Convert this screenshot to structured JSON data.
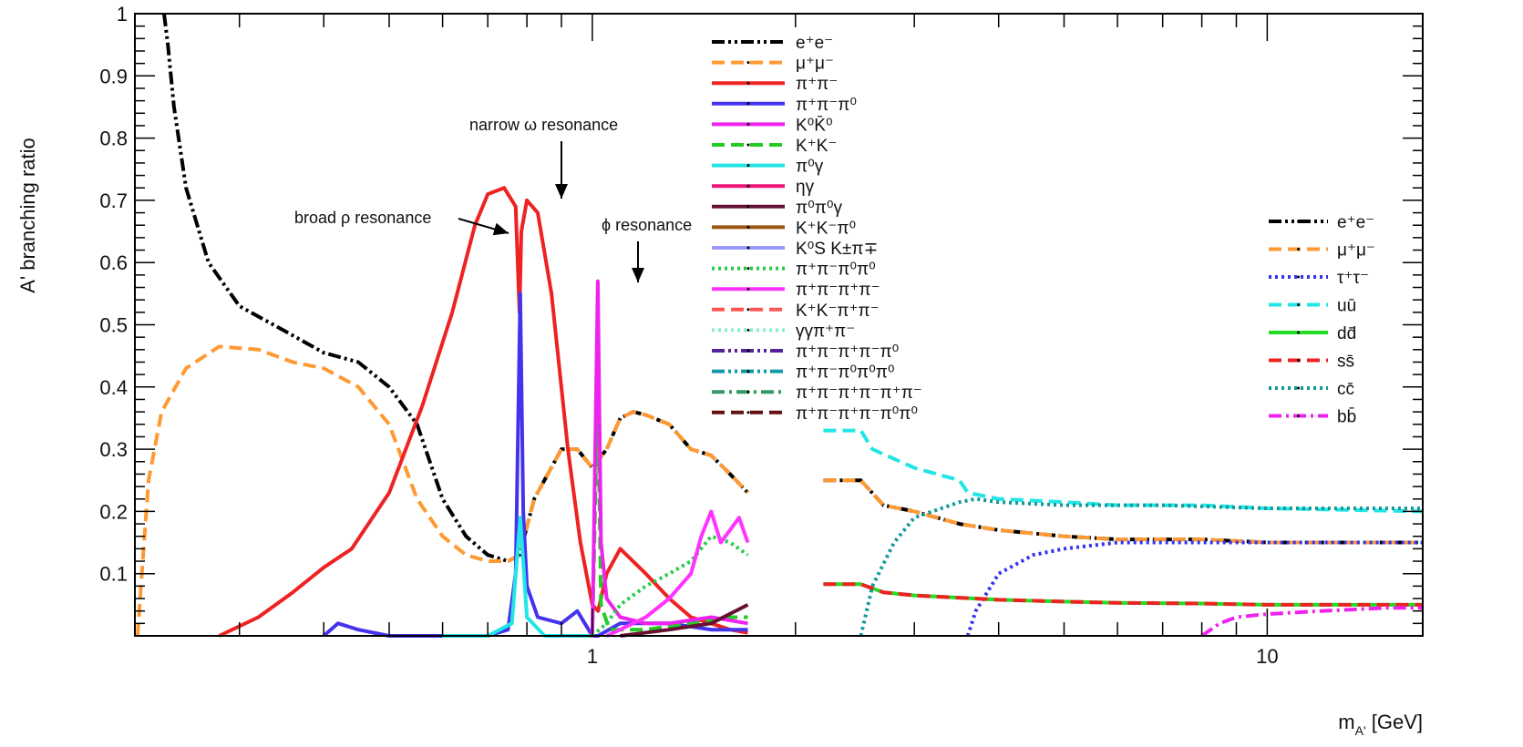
{
  "chart_data": {
    "type": "line",
    "xlabel": "m_A' [GeV]",
    "xlabel_main": "m",
    "xlabel_sub": "A'",
    "xlabel_unit": "[GeV]",
    "ylabel": "A' branching ratio",
    "xscale": "log",
    "xlim": [
      0.21,
      17
    ],
    "ylim": [
      0,
      1
    ],
    "yticks": [
      {
        "value": 0.1,
        "label": "0.1"
      },
      {
        "value": 0.2,
        "label": "0.2"
      },
      {
        "value": 0.3,
        "label": "0.3"
      },
      {
        "value": 0.4,
        "label": "0.4"
      },
      {
        "value": 0.5,
        "label": "0.5"
      },
      {
        "value": 0.6,
        "label": "0.6"
      },
      {
        "value": 0.7,
        "label": "0.7"
      },
      {
        "value": 0.8,
        "label": "0.8"
      },
      {
        "value": 0.9,
        "label": "0.9"
      },
      {
        "value": 1.0,
        "label": "1"
      }
    ],
    "xticks": [
      {
        "value": 1,
        "label": "1"
      },
      {
        "value": 10,
        "label": "10"
      }
    ],
    "annotations": [
      {
        "text": "narrow ω resonance",
        "x": 0.78,
        "y": 0.7
      },
      {
        "text": "broad ρ resonance",
        "x": 0.68,
        "y": 0.65
      },
      {
        "text": "ϕ resonance",
        "x": 1.02,
        "y": 0.57
      }
    ],
    "legends": [
      {
        "placement": "top-center",
        "entries": [
          {
            "id": "l1",
            "label": "e⁺e⁻",
            "color": "#000000",
            "dash": "dashdotdot"
          },
          {
            "id": "l2",
            "label": "μ⁺μ⁻",
            "color": "#ff9933",
            "dash": "dash"
          },
          {
            "id": "l3",
            "label": "π⁺π⁻",
            "color": "#ee2222",
            "dash": "solid"
          },
          {
            "id": "l4",
            "label": "π⁺π⁻π⁰",
            "color": "#4433ee",
            "dash": "solid"
          },
          {
            "id": "l5",
            "label": "K⁰K̄⁰",
            "color": "#ee22ee",
            "dash": "solid"
          },
          {
            "id": "l6",
            "label": "K⁺K⁻",
            "color": "#22cc22",
            "dash": "dash"
          },
          {
            "id": "l7",
            "label": "π⁰γ",
            "color": "#22e5e5",
            "dash": "solid"
          },
          {
            "id": "l8",
            "label": "ηγ",
            "color": "#ee1177",
            "dash": "solid"
          },
          {
            "id": "l9",
            "label": "π⁰π⁰γ",
            "color": "#661133",
            "dash": "solid"
          },
          {
            "id": "l10",
            "label": "K⁺K⁻π⁰",
            "color": "#995511",
            "dash": "solid"
          },
          {
            "id": "l11",
            "label": "K⁰S K±π∓",
            "color": "#9999ff",
            "dash": "solid"
          },
          {
            "id": "l12",
            "label": "π⁺π⁻π⁰π⁰",
            "color": "#22cc44",
            "dash": "dot"
          },
          {
            "id": "l13",
            "label": "π⁺π⁻π⁺π⁻",
            "color": "#ff33ff",
            "dash": "solid"
          },
          {
            "id": "l14",
            "label": "K⁺K⁻π⁺π⁻",
            "color": "#ff5555",
            "dash": "dash"
          },
          {
            "id": "l15",
            "label": "γγπ⁺π⁻",
            "color": "#88eecc",
            "dash": "dot"
          },
          {
            "id": "l16",
            "label": "π⁺π⁻π⁺π⁻π⁰",
            "color": "#552299",
            "dash": "dashdotdot"
          },
          {
            "id": "l17",
            "label": "π⁺π⁻π⁰π⁰π⁰",
            "color": "#1199aa",
            "dash": "dashdotdot"
          },
          {
            "id": "l18",
            "label": "π⁺π⁻π⁺π⁻π⁺π⁻",
            "color": "#339966",
            "dash": "dashdot"
          },
          {
            "id": "l19",
            "label": "π⁺π⁻π⁺π⁻π⁰π⁰",
            "color": "#661111",
            "dash": "dash"
          }
        ]
      },
      {
        "placement": "right",
        "entries": [
          {
            "id": "r1",
            "label": "e⁺e⁻",
            "color": "#000000",
            "dash": "dashdotdot"
          },
          {
            "id": "r2",
            "label": "μ⁺μ⁻",
            "color": "#ff9933",
            "dash": "dash"
          },
          {
            "id": "r3",
            "label": "τ⁺τ⁻",
            "color": "#3333ee",
            "dash": "dot"
          },
          {
            "id": "r4",
            "label": "uū",
            "color": "#22e5e5",
            "dash": "dash"
          },
          {
            "id": "r5",
            "label": "dd̄",
            "color": "#22dd22",
            "dash": "solid"
          },
          {
            "id": "r6",
            "label": "ss̄",
            "color": "#ee2222",
            "dash": "dash"
          },
          {
            "id": "r7",
            "label": "cc̄",
            "color": "#119999",
            "dash": "dot"
          },
          {
            "id": "r8",
            "label": "bb̄",
            "color": "#ee22ee",
            "dash": "dashdot"
          }
        ]
      }
    ],
    "series": [
      {
        "key": "ee_low",
        "color": "#000000",
        "dash": "dashdotdot",
        "x": [
          0.232,
          0.235,
          0.24,
          0.25,
          0.27,
          0.3,
          0.35,
          0.4,
          0.45,
          0.5,
          0.55,
          0.6,
          0.65,
          0.7,
          0.75,
          0.78,
          0.82,
          0.9,
          0.95,
          1.0,
          1.05,
          1.1,
          1.15,
          1.2,
          1.3,
          1.4,
          1.5,
          1.6,
          1.7
        ],
        "y": [
          1.0,
          0.95,
          0.85,
          0.72,
          0.6,
          0.53,
          0.49,
          0.455,
          0.44,
          0.4,
          0.34,
          0.22,
          0.16,
          0.13,
          0.12,
          0.13,
          0.22,
          0.3,
          0.3,
          0.27,
          0.3,
          0.35,
          0.36,
          0.355,
          0.34,
          0.3,
          0.29,
          0.26,
          0.23
        ]
      },
      {
        "key": "mumu_low",
        "color": "#ff9933",
        "dash": "dash",
        "x": [
          0.212,
          0.215,
          0.22,
          0.23,
          0.25,
          0.28,
          0.32,
          0.36,
          0.4,
          0.45,
          0.5,
          0.55,
          0.6,
          0.65,
          0.7,
          0.75,
          0.78,
          0.82,
          0.9,
          0.95,
          1.0,
          1.05,
          1.1,
          1.15,
          1.2,
          1.3,
          1.4,
          1.5,
          1.6,
          1.7
        ],
        "y": [
          0.0,
          0.1,
          0.25,
          0.36,
          0.43,
          0.465,
          0.46,
          0.44,
          0.43,
          0.4,
          0.34,
          0.22,
          0.16,
          0.13,
          0.12,
          0.12,
          0.13,
          0.22,
          0.3,
          0.3,
          0.27,
          0.3,
          0.35,
          0.36,
          0.355,
          0.34,
          0.3,
          0.29,
          0.26,
          0.23
        ]
      },
      {
        "key": "pipi",
        "color": "#ee2222",
        "dash": "solid",
        "x": [
          0.28,
          0.32,
          0.36,
          0.4,
          0.44,
          0.5,
          0.56,
          0.62,
          0.67,
          0.7,
          0.74,
          0.77,
          0.78,
          0.785,
          0.8,
          0.83,
          0.87,
          0.92,
          0.96,
          1.0,
          1.02,
          1.05,
          1.1,
          1.2,
          1.3,
          1.4,
          1.5,
          1.6,
          1.7
        ],
        "y": [
          0.0,
          0.03,
          0.07,
          0.11,
          0.14,
          0.23,
          0.37,
          0.52,
          0.66,
          0.71,
          0.72,
          0.69,
          0.52,
          0.65,
          0.7,
          0.68,
          0.55,
          0.3,
          0.15,
          0.05,
          0.04,
          0.1,
          0.14,
          0.1,
          0.06,
          0.03,
          0.02,
          0.01,
          0.005
        ]
      },
      {
        "key": "pipipi0",
        "color": "#4433ee",
        "dash": "solid",
        "x": [
          0.4,
          0.42,
          0.45,
          0.5,
          0.6,
          0.7,
          0.75,
          0.77,
          0.782,
          0.79,
          0.8,
          0.83,
          0.9,
          0.95,
          1.0,
          1.02,
          1.1,
          1.3,
          1.5,
          1.7
        ],
        "y": [
          0.0,
          0.02,
          0.01,
          0.0,
          0.0,
          0.0,
          0.01,
          0.1,
          0.55,
          0.2,
          0.08,
          0.03,
          0.02,
          0.04,
          0.0,
          0.0,
          0.02,
          0.02,
          0.01,
          0.01
        ]
      },
      {
        "key": "pi0gamma",
        "color": "#22e5e5",
        "dash": "solid",
        "x": [
          0.6,
          0.7,
          0.76,
          0.782,
          0.8,
          0.85,
          0.9,
          1.0
        ],
        "y": [
          0.0,
          0.0,
          0.02,
          0.19,
          0.03,
          0.0,
          0.0,
          0.0
        ]
      },
      {
        "key": "KK",
        "color": "#22cc22",
        "dash": "dash",
        "x": [
          0.99,
          1.0,
          1.019,
          1.03,
          1.06,
          1.2,
          1.4,
          1.6,
          1.7
        ],
        "y": [
          0.0,
          0.0,
          0.4,
          0.05,
          0.01,
          0.01,
          0.02,
          0.03,
          0.03
        ]
      },
      {
        "key": "KS",
        "color": "#ee22ee",
        "dash": "solid",
        "x": [
          0.995,
          1.0,
          1.019,
          1.03,
          1.05,
          1.1,
          1.2,
          1.3,
          1.5,
          1.7
        ],
        "y": [
          0.0,
          0.0,
          0.57,
          0.15,
          0.06,
          0.03,
          0.02,
          0.02,
          0.03,
          0.02
        ]
      },
      {
        "key": "pi4",
        "color": "#22cc44",
        "dash": "dot",
        "x": [
          1.0,
          1.05,
          1.1,
          1.2,
          1.3,
          1.4,
          1.5,
          1.6,
          1.7
        ],
        "y": [
          0.0,
          0.02,
          0.05,
          0.08,
          0.1,
          0.12,
          0.16,
          0.15,
          0.13
        ]
      },
      {
        "key": "pi4c",
        "color": "#ff33ff",
        "dash": "solid",
        "x": [
          1.05,
          1.1,
          1.2,
          1.3,
          1.4,
          1.45,
          1.5,
          1.55,
          1.6,
          1.65,
          1.7
        ],
        "y": [
          0.0,
          0.01,
          0.03,
          0.06,
          0.1,
          0.16,
          0.2,
          0.15,
          0.17,
          0.19,
          0.15
        ]
      },
      {
        "key": "misc",
        "color": "#661133",
        "dash": "solid",
        "x": [
          1.1,
          1.3,
          1.5,
          1.7
        ],
        "y": [
          0.0,
          0.01,
          0.02,
          0.05
        ]
      },
      {
        "key": "ee_high",
        "color": "#000000",
        "dash": "dashdotdot",
        "x": [
          2.2,
          2.5,
          2.7,
          3.0,
          3.5,
          4.0,
          5.0,
          6.0,
          8.0,
          10.0,
          17.0
        ],
        "y": [
          0.25,
          0.25,
          0.21,
          0.2,
          0.18,
          0.17,
          0.16,
          0.155,
          0.155,
          0.15,
          0.15
        ]
      },
      {
        "key": "mumu_high",
        "color": "#ff9933",
        "dash": "dash",
        "x": [
          2.2,
          2.5,
          2.7,
          3.0,
          3.5,
          4.0,
          5.0,
          6.0,
          8.0,
          10.0,
          17.0
        ],
        "y": [
          0.25,
          0.25,
          0.21,
          0.2,
          0.18,
          0.17,
          0.16,
          0.155,
          0.155,
          0.15,
          0.15
        ]
      },
      {
        "key": "tautau",
        "color": "#3333ee",
        "dash": "dot",
        "x": [
          3.6,
          3.7,
          4.0,
          4.5,
          5.0,
          6.0,
          7.0,
          8.0,
          10.0,
          17.0
        ],
        "y": [
          0.0,
          0.04,
          0.1,
          0.13,
          0.14,
          0.15,
          0.15,
          0.15,
          0.15,
          0.15
        ]
      },
      {
        "key": "uu",
        "color": "#22e5e5",
        "dash": "dash",
        "x": [
          2.2,
          2.5,
          2.6,
          3.0,
          3.5,
          3.6,
          4.0,
          5.0,
          6.0,
          8.0,
          10.0,
          17.0
        ],
        "y": [
          0.33,
          0.33,
          0.3,
          0.27,
          0.25,
          0.23,
          0.22,
          0.215,
          0.21,
          0.21,
          0.205,
          0.2
        ]
      },
      {
        "key": "dd",
        "color": "#22dd22",
        "dash": "solid",
        "x": [
          2.2,
          2.5,
          2.7,
          3.0,
          4.0,
          5.0,
          6.0,
          8.0,
          10.0,
          17.0
        ],
        "y": [
          0.083,
          0.083,
          0.07,
          0.065,
          0.058,
          0.055,
          0.053,
          0.052,
          0.05,
          0.05
        ]
      },
      {
        "key": "ss",
        "color": "#ee2222",
        "dash": "dash",
        "x": [
          2.2,
          2.5,
          2.7,
          3.0,
          4.0,
          5.0,
          6.0,
          8.0,
          10.0,
          17.0
        ],
        "y": [
          0.083,
          0.083,
          0.07,
          0.065,
          0.058,
          0.055,
          0.053,
          0.052,
          0.05,
          0.05
        ]
      },
      {
        "key": "cc",
        "color": "#119999",
        "dash": "dot",
        "x": [
          2.5,
          2.6,
          2.8,
          3.0,
          3.5,
          3.7,
          4.0,
          5.0,
          7.0,
          10.0,
          17.0
        ],
        "y": [
          0.0,
          0.08,
          0.15,
          0.19,
          0.215,
          0.22,
          0.215,
          0.21,
          0.21,
          0.205,
          0.205
        ]
      },
      {
        "key": "bb",
        "color": "#ee22ee",
        "dash": "dashdot",
        "x": [
          8.0,
          8.5,
          9.0,
          10.0,
          12.0,
          15.0,
          17.0
        ],
        "y": [
          0.0,
          0.02,
          0.03,
          0.035,
          0.04,
          0.045,
          0.045
        ]
      }
    ]
  }
}
